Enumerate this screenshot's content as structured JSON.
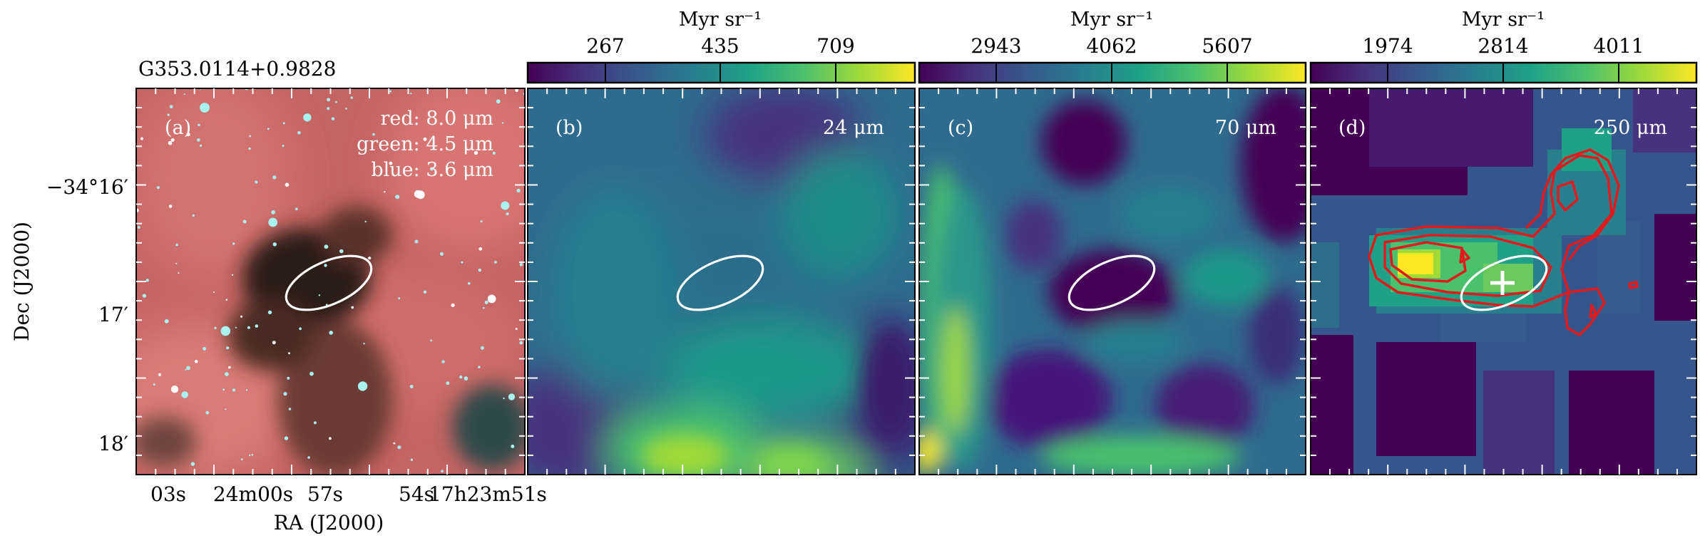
{
  "figure": {
    "source_name": "G353.0114+0.9828",
    "x_axis_label": "RA (J2000)",
    "y_axis_label": "Dec (J2000)",
    "ra_tick_labels": [
      "03s",
      "24m00s",
      "57s",
      "54s",
      "17h23m51s"
    ],
    "dec_tick_labels": [
      "−34°16′",
      "17′",
      "18′"
    ]
  },
  "panels": [
    {
      "id": "a",
      "tag": "(a)",
      "rgb_legend": [
        "red: 8.0 μm",
        "green: 4.5 μm",
        "blue: 3.6 μm"
      ],
      "channel_colors": {
        "red": "#e06060",
        "green": "#3aff7a",
        "blue": "#8ff4ff"
      }
    },
    {
      "id": "b",
      "tag": "(b)",
      "band_label": "24 μm",
      "colorbar": {
        "unit": "Myr sr⁻¹",
        "tick_labels": [
          "267",
          "435",
          "709"
        ],
        "colormap": "viridis"
      }
    },
    {
      "id": "c",
      "tag": "(c)",
      "band_label": "70 μm",
      "colorbar": {
        "unit": "Myr sr⁻¹",
        "tick_labels": [
          "2943",
          "4062",
          "5607"
        ],
        "colormap": "viridis"
      }
    },
    {
      "id": "d",
      "tag": "(d)",
      "band_label": "250 μm",
      "colorbar": {
        "unit": "Myr sr⁻¹",
        "tick_labels": [
          "1974",
          "2814",
          "4011"
        ],
        "colormap": "viridis"
      },
      "contour_color": "#e31a1c",
      "marker": "plus"
    }
  ],
  "colors": {
    "ellipse": "#ffffff",
    "contour": "#e31a1c",
    "viridis": [
      "#440154",
      "#46327e",
      "#365c8d",
      "#277f8e",
      "#1fa187",
      "#4ac16d",
      "#a0da39",
      "#fde725"
    ]
  }
}
